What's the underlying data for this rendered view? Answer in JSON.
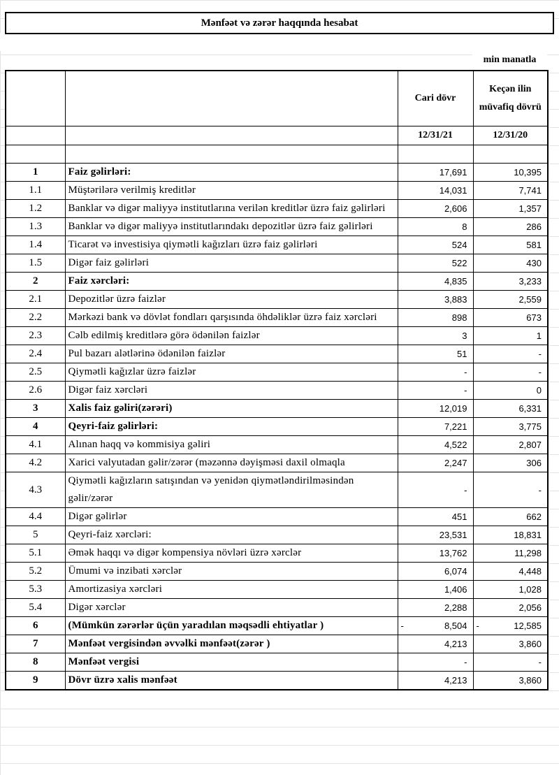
{
  "header": {
    "title": "Mənfəət və zərər haqqında hesabat",
    "unit": "min manatla"
  },
  "table": {
    "columns": [
      "Cari dövr",
      "Keçən ilin müvafiq dövrü"
    ],
    "dates": [
      "12/31/21",
      "12/31/20"
    ],
    "rows": [
      {
        "no": "1",
        "label": "Faiz gəlirləri:",
        "current": "17,691",
        "previous": "10,395",
        "bold": true
      },
      {
        "no": "1.1",
        "label": "Müştərilərə verilmiş kreditlər",
        "current": "14,031",
        "previous": "7,741",
        "bold": false
      },
      {
        "no": "1.2",
        "label": "Banklar və digər maliyyə institutlarına verilən kreditlər üzrə faiz gəlirləri",
        "current": "2,606",
        "previous": "1,357",
        "bold": false
      },
      {
        "no": "1.3",
        "label": "Banklar və digər maliyyə institutlarındakı depozitlər üzrə faiz gəlirləri",
        "current": "8",
        "previous": "286",
        "bold": false
      },
      {
        "no": "1.4",
        "label": "Ticarət və investisiya qiymətli kağızları üzrə faiz gəlirləri",
        "current": "524",
        "previous": "581",
        "bold": false
      },
      {
        "no": "1.5",
        "label": "Digər faiz gəlirləri",
        "current": "522",
        "previous": "430",
        "bold": false
      },
      {
        "no": "2",
        "label": "Faiz xərcləri:",
        "current": "4,835",
        "previous": "3,233",
        "bold": true
      },
      {
        "no": "2.1",
        "label": "Depozitlər üzrə faizlər",
        "current": "3,883",
        "previous": "2,559",
        "bold": false
      },
      {
        "no": "2.2",
        "label": "Mərkəzi bank və dövlət fondları qarşısında öhdəliklər üzrə faiz xərcləri",
        "current": "898",
        "previous": "673",
        "bold": false
      },
      {
        "no": "2.3",
        "label": "Cəlb edilmiş kreditlərə görə ödənilən faizlər",
        "current": "3",
        "previous": "1",
        "bold": false
      },
      {
        "no": "2.4",
        "label": "Pul bazarı alətlərinə ödənilən faizlər",
        "current": "51",
        "previous": "-",
        "bold": false
      },
      {
        "no": "2.5",
        "label": "Qiymətli kağızlar üzrə faizlər",
        "current": "-",
        "previous": "-",
        "bold": false
      },
      {
        "no": "2.6",
        "label": "Digər faiz xərcləri",
        "current": "-",
        "previous": "0",
        "bold": false
      },
      {
        "no": "3",
        "label": "Xalis faiz gəliri(zərəri)",
        "current": "12,019",
        "previous": "6,331",
        "bold": true
      },
      {
        "no": "4",
        "label": "Qeyri-faiz gəlirləri:",
        "current": "7,221",
        "previous": "3,775",
        "bold": true
      },
      {
        "no": "4.1",
        "label": "Alınan haqq və kommisiya gəliri",
        "current": "4,522",
        "previous": "2,807",
        "bold": false
      },
      {
        "no": "4.2",
        "label": "Xarici valyutadan gəlir/zərər (məzənnə dəyişməsi daxil olmaqla",
        "current": "2,247",
        "previous": "306",
        "bold": false
      },
      {
        "no": "4.3",
        "label": "Qiymətli kağızların satışından və yenidən qiymətləndirilməsindən gəlir/zərər",
        "current": "-",
        "previous": "-",
        "bold": false
      },
      {
        "no": "4.4",
        "label": "Digər gəlirlər",
        "current": "451",
        "previous": "662",
        "bold": false
      },
      {
        "no": "5",
        "label": "Qeyri-faiz xərcləri:",
        "current": "23,531",
        "previous": "18,831",
        "bold": false
      },
      {
        "no": "5.1",
        "label": "Əmək haqqı və digər kompensiya növləri üzrə xərclər",
        "current": "13,762",
        "previous": "11,298",
        "bold": false
      },
      {
        "no": "5.2",
        "label": "Ümumi və inzibati xərclər",
        "current": "6,074",
        "previous": "4,448",
        "bold": false
      },
      {
        "no": "5.3",
        "label": "Amortizasiya xərcləri",
        "current": "1,406",
        "previous": "1,028",
        "bold": false
      },
      {
        "no": "5.4",
        "label": "Digər xərclər",
        "current": "2,288",
        "previous": "2,056",
        "bold": false
      },
      {
        "no": "6",
        "label": "(Mümkün zərərlər üçün yaradılan məqsədli ehtiyatlar )",
        "current": {
          "sign": "-",
          "amount": "8,504"
        },
        "previous": {
          "sign": "-",
          "amount": "12,585"
        },
        "bold": true
      },
      {
        "no": "7",
        "label": "Mənfəət vergisindən əvvəlki mənfəət(zərər )",
        "current": "4,213",
        "previous": "3,860",
        "bold": true
      },
      {
        "no": "8",
        "label": "Mənfəət vergisi",
        "current": "-",
        "previous": "-",
        "bold": true
      },
      {
        "no": "9",
        "label": "Dövr üzrə xalis mənfəət",
        "current": "4,213",
        "previous": "3,860",
        "bold": true
      }
    ]
  }
}
